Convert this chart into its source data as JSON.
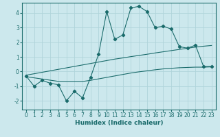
{
  "xlabel": "Humidex (Indice chaleur)",
  "ylabel": "",
  "bg_color": "#cce8ed",
  "grid_color": "#b0d4da",
  "line_color": "#1a6b6b",
  "x_data": [
    0,
    1,
    2,
    3,
    4,
    5,
    6,
    7,
    8,
    9,
    10,
    11,
    12,
    13,
    14,
    15,
    16,
    17,
    18,
    19,
    20,
    21,
    22,
    23
  ],
  "y_main": [
    -0.3,
    -1.0,
    -0.6,
    -0.8,
    -0.9,
    -2.0,
    -1.35,
    -1.8,
    -0.4,
    1.2,
    4.1,
    2.2,
    2.5,
    4.35,
    4.45,
    4.1,
    3.0,
    3.1,
    2.9,
    1.7,
    1.6,
    1.8,
    0.35,
    0.35
  ],
  "y_upper": [
    -0.25,
    -0.15,
    -0.05,
    0.05,
    0.15,
    0.25,
    0.35,
    0.45,
    0.55,
    0.65,
    0.75,
    0.85,
    0.93,
    1.02,
    1.1,
    1.18,
    1.27,
    1.35,
    1.43,
    1.51,
    1.59,
    1.67,
    1.73,
    1.78
  ],
  "y_lower": [
    -0.35,
    -0.43,
    -0.51,
    -0.59,
    -0.67,
    -0.68,
    -0.68,
    -0.68,
    -0.6,
    -0.5,
    -0.4,
    -0.3,
    -0.2,
    -0.1,
    -0.02,
    0.05,
    0.12,
    0.18,
    0.22,
    0.26,
    0.28,
    0.3,
    0.3,
    0.32
  ],
  "xlim": [
    -0.5,
    23.5
  ],
  "ylim": [
    -2.6,
    4.7
  ],
  "yticks": [
    -2,
    -1,
    0,
    1,
    2,
    3,
    4
  ],
  "xticks": [
    0,
    1,
    2,
    3,
    4,
    5,
    6,
    7,
    8,
    9,
    10,
    11,
    12,
    13,
    14,
    15,
    16,
    17,
    18,
    19,
    20,
    21,
    22,
    23
  ],
  "tick_fontsize": 5.5,
  "xlabel_fontsize": 6.5
}
